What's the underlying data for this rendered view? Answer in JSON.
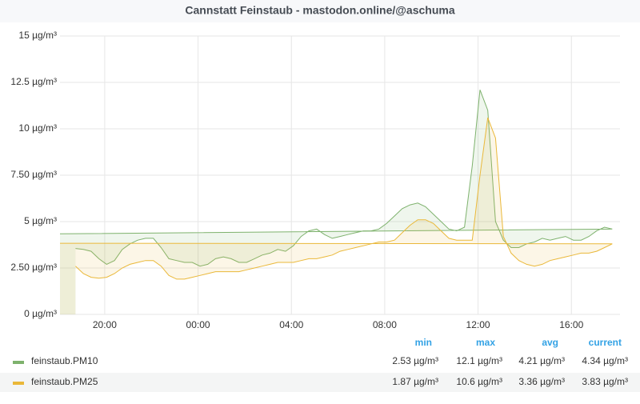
{
  "chart_data": {
    "type": "line",
    "title": "Cannstatt Feinstaub - mastodon.online/@aschuma",
    "x": [
      "18:45",
      "19:05",
      "19:25",
      "19:45",
      "20:05",
      "20:25",
      "20:45",
      "21:05",
      "21:25",
      "21:45",
      "22:05",
      "22:25",
      "22:45",
      "23:05",
      "23:25",
      "23:45",
      "00:05",
      "00:25",
      "00:45",
      "01:05",
      "01:25",
      "01:45",
      "02:05",
      "02:25",
      "02:45",
      "03:05",
      "03:25",
      "03:45",
      "04:05",
      "04:25",
      "04:45",
      "05:05",
      "05:25",
      "05:45",
      "06:05",
      "06:25",
      "06:45",
      "07:05",
      "07:25",
      "07:45",
      "08:05",
      "08:25",
      "08:45",
      "09:05",
      "09:25",
      "09:45",
      "10:05",
      "10:25",
      "10:45",
      "11:05",
      "11:25",
      "11:45",
      "12:05",
      "12:25",
      "12:45",
      "13:05",
      "13:25",
      "13:45",
      "14:05",
      "14:25",
      "14:45",
      "15:05",
      "15:25",
      "15:45",
      "16:05",
      "16:25",
      "16:45",
      "17:05",
      "17:25",
      "17:45",
      "18:05"
    ],
    "xlim": [
      "18:05",
      "18:05"
    ],
    "xticks": [
      "20:00",
      "00:00",
      "04:00",
      "08:00",
      "12:00",
      "16:00"
    ],
    "ylim": [
      0,
      15
    ],
    "yticks": [
      {
        "value": 0,
        "label": "0 µg/m³"
      },
      {
        "value": 2.5,
        "label": "2.50 µg/m³"
      },
      {
        "value": 5,
        "label": "5 µg/m³"
      },
      {
        "value": 7.5,
        "label": "7.50 µg/m³"
      },
      {
        "value": 10,
        "label": "10 µg/m³"
      },
      {
        "value": 12.5,
        "label": "12.5 µg/m³"
      },
      {
        "value": 15,
        "label": "15 µg/m³"
      }
    ],
    "grid": true,
    "stat_names": [
      "min",
      "max",
      "avg",
      "current"
    ],
    "series": [
      {
        "name": "feinstaub.PM10",
        "color": "#7eb26d",
        "values": [
          3.55,
          3.5,
          3.4,
          3.0,
          2.7,
          2.9,
          3.5,
          3.8,
          4.0,
          4.1,
          4.1,
          3.6,
          3.0,
          2.9,
          2.8,
          2.8,
          2.6,
          2.7,
          3.0,
          3.1,
          3.0,
          2.8,
          2.8,
          3.0,
          3.2,
          3.3,
          3.5,
          3.4,
          3.7,
          4.2,
          4.5,
          4.6,
          4.3,
          4.1,
          4.2,
          4.3,
          4.4,
          4.5,
          4.5,
          4.6,
          4.9,
          5.3,
          5.7,
          5.9,
          6.0,
          5.8,
          5.4,
          5.0,
          4.6,
          4.5,
          4.7,
          8.0,
          12.1,
          11.0,
          5.0,
          4.0,
          3.6,
          3.6,
          3.8,
          3.9,
          4.1,
          4.0,
          4.1,
          4.2,
          4.0,
          4.0,
          4.2,
          4.5,
          4.7,
          4.6,
          4.34
        ],
        "stats": [
          2.53,
          12.1,
          4.21,
          4.34
        ],
        "stat_labels": [
          "2.53 µg/m³",
          "12.1 µg/m³",
          "4.21 µg/m³",
          "4.34 µg/m³"
        ]
      },
      {
        "name": "feinstaub.PM25",
        "color": "#eab839",
        "values": [
          2.6,
          2.2,
          2.0,
          1.95,
          2.0,
          2.2,
          2.5,
          2.7,
          2.8,
          2.9,
          2.9,
          2.6,
          2.1,
          1.9,
          1.9,
          2.0,
          2.1,
          2.2,
          2.3,
          2.3,
          2.3,
          2.3,
          2.4,
          2.5,
          2.6,
          2.7,
          2.8,
          2.8,
          2.8,
          2.9,
          3.0,
          3.0,
          3.1,
          3.2,
          3.4,
          3.5,
          3.6,
          3.7,
          3.8,
          3.9,
          3.9,
          4.0,
          4.4,
          4.8,
          5.1,
          5.1,
          4.9,
          4.5,
          4.1,
          4.0,
          4.0,
          4.0,
          7.5,
          10.6,
          9.5,
          4.2,
          3.3,
          2.9,
          2.7,
          2.6,
          2.7,
          2.9,
          3.0,
          3.1,
          3.2,
          3.3,
          3.3,
          3.4,
          3.6,
          3.8,
          3.83
        ],
        "stats": [
          1.87,
          10.6,
          3.36,
          3.83
        ],
        "stat_labels": [
          "1.87 µg/m³",
          "10.6 µg/m³",
          "3.36 µg/m³",
          "3.83 µg/m³"
        ]
      }
    ]
  }
}
